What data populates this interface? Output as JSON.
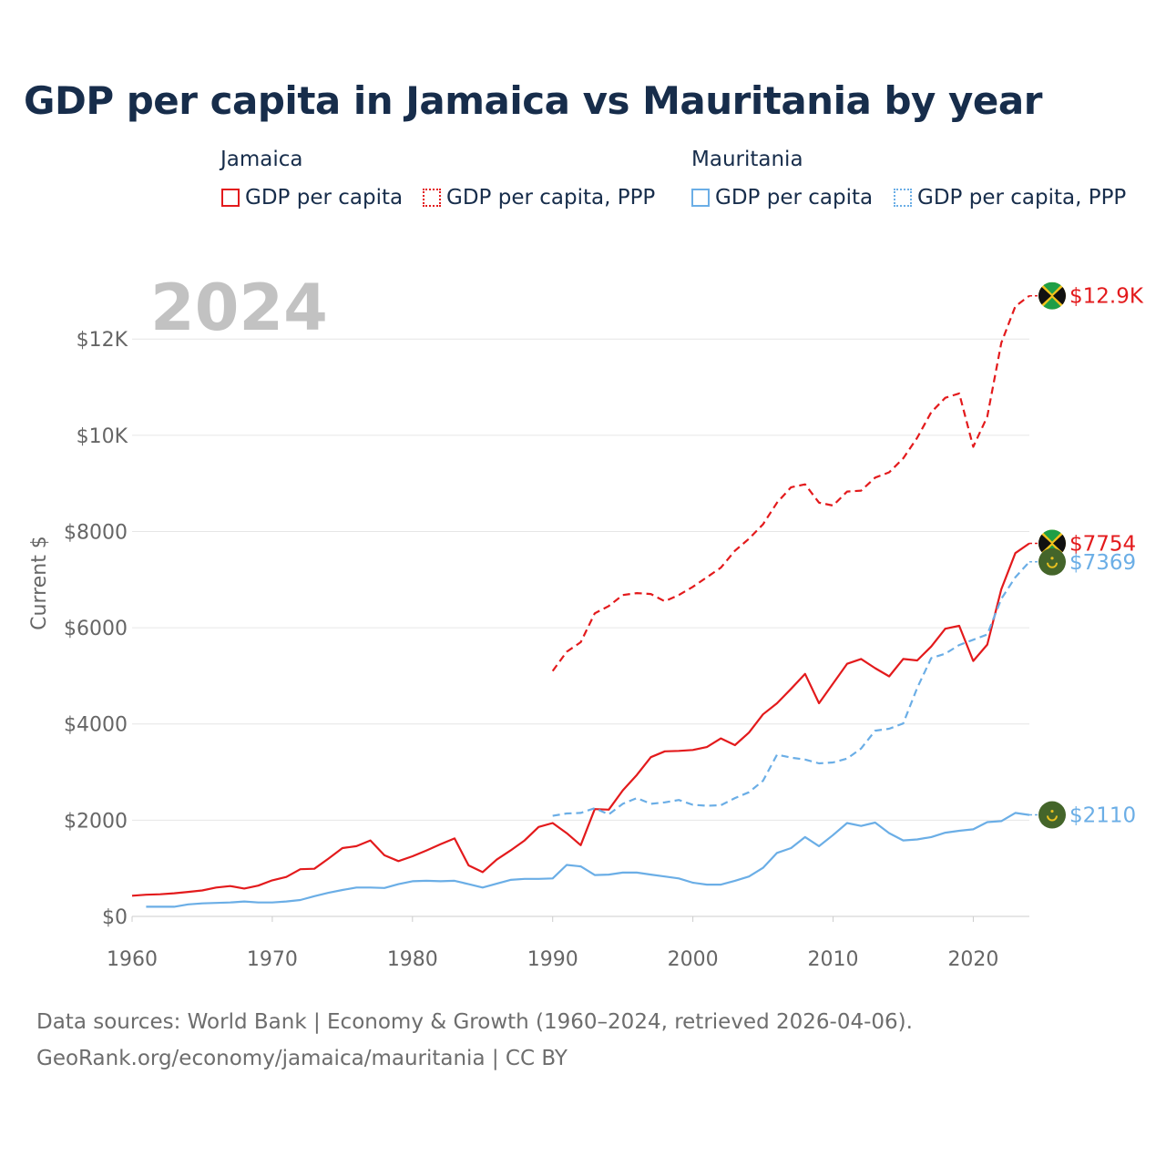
{
  "chart_data": {
    "type": "line",
    "title": "GDP per capita in Jamaica vs Mauritania by year",
    "year_label": "2024",
    "ylabel": "Current $",
    "xlabel": "",
    "xlim": [
      1960,
      2024
    ],
    "ylim": [
      0,
      13500
    ],
    "x_ticks": [
      1960,
      1970,
      1980,
      1990,
      2000,
      2010,
      2020
    ],
    "y_ticks": [
      0,
      2000,
      4000,
      6000,
      8000,
      10000,
      12000
    ],
    "y_tick_labels": [
      "$0",
      "$2000",
      "$4000",
      "$6000",
      "$8000",
      "$10K",
      "$12K"
    ],
    "grid": true,
    "legend": {
      "groups": [
        {
          "country": "Jamaica",
          "entries": [
            "GDP per capita",
            "GDP per capita, PPP"
          ]
        },
        {
          "country": "Mauritania",
          "entries": [
            "GDP per capita",
            "GDP per capita, PPP"
          ]
        }
      ]
    },
    "series": [
      {
        "name": "Jamaica GDP per capita",
        "country": "Jamaica",
        "metric": "GDP per capita",
        "color": "#e31a1c",
        "style": "solid",
        "end_label": "$7754",
        "x": [
          1960,
          1961,
          1962,
          1963,
          1964,
          1965,
          1966,
          1967,
          1968,
          1969,
          1970,
          1971,
          1972,
          1973,
          1974,
          1975,
          1976,
          1977,
          1978,
          1979,
          1980,
          1981,
          1982,
          1983,
          1984,
          1985,
          1986,
          1987,
          1988,
          1989,
          1990,
          1991,
          1992,
          1993,
          1994,
          1995,
          1996,
          1997,
          1998,
          1999,
          2000,
          2001,
          2002,
          2003,
          2004,
          2005,
          2006,
          2007,
          2008,
          2009,
          2010,
          2011,
          2012,
          2013,
          2014,
          2015,
          2016,
          2017,
          2018,
          2019,
          2020,
          2021,
          2022,
          2023,
          2024
        ],
        "values": [
          430,
          450,
          460,
          480,
          510,
          540,
          600,
          630,
          580,
          640,
          750,
          820,
          980,
          990,
          1200,
          1420,
          1460,
          1580,
          1270,
          1150,
          1250,
          1370,
          1500,
          1620,
          1060,
          920,
          1180,
          1370,
          1580,
          1860,
          1940,
          1730,
          1480,
          2230,
          2220,
          2620,
          2940,
          3310,
          3430,
          3440,
          3460,
          3520,
          3700,
          3560,
          3820,
          4200,
          4430,
          4730,
          5040,
          4430,
          4840,
          5250,
          5350,
          5160,
          4990,
          5350,
          5320,
          5610,
          5980,
          6040,
          5310,
          5650,
          6800,
          7550,
          7754
        ]
      },
      {
        "name": "Jamaica GDP per capita, PPP",
        "country": "Jamaica",
        "metric": "GDP per capita, PPP",
        "color": "#e31a1c",
        "style": "dashed",
        "end_label": "$12.9K",
        "x": [
          1990,
          1991,
          1992,
          1993,
          1994,
          1995,
          1996,
          1997,
          1998,
          1999,
          2000,
          2001,
          2002,
          2003,
          2004,
          2005,
          2006,
          2007,
          2008,
          2009,
          2010,
          2011,
          2012,
          2013,
          2014,
          2015,
          2016,
          2017,
          2018,
          2019,
          2020,
          2021,
          2022,
          2023,
          2024
        ],
        "values": [
          5100,
          5500,
          5700,
          6300,
          6450,
          6680,
          6720,
          6700,
          6550,
          6680,
          6850,
          7050,
          7250,
          7600,
          7850,
          8150,
          8600,
          8920,
          8980,
          8600,
          8540,
          8830,
          8850,
          9120,
          9230,
          9520,
          9950,
          10480,
          10780,
          10870,
          9760,
          10390,
          11920,
          12680,
          12900
        ]
      },
      {
        "name": "Mauritania GDP per capita",
        "country": "Mauritania",
        "metric": "GDP per capita",
        "color": "#6baee6",
        "style": "solid",
        "end_label": "$2110",
        "x": [
          1961,
          1962,
          1963,
          1964,
          1965,
          1966,
          1967,
          1968,
          1969,
          1970,
          1971,
          1972,
          1973,
          1974,
          1975,
          1976,
          1977,
          1978,
          1979,
          1980,
          1981,
          1982,
          1983,
          1984,
          1985,
          1986,
          1987,
          1988,
          1989,
          1990,
          1991,
          1992,
          1993,
          1994,
          1995,
          1996,
          1997,
          1998,
          1999,
          2000,
          2001,
          2002,
          2003,
          2004,
          2005,
          2006,
          2007,
          2008,
          2009,
          2010,
          2011,
          2012,
          2013,
          2014,
          2015,
          2016,
          2017,
          2018,
          2019,
          2020,
          2021,
          2022,
          2023,
          2024
        ],
        "values": [
          200,
          200,
          200,
          250,
          270,
          280,
          290,
          310,
          290,
          290,
          310,
          340,
          420,
          490,
          550,
          600,
          600,
          590,
          670,
          730,
          740,
          730,
          740,
          670,
          600,
          680,
          760,
          780,
          780,
          790,
          1070,
          1040,
          860,
          870,
          910,
          910,
          870,
          830,
          790,
          700,
          660,
          660,
          740,
          830,
          1010,
          1320,
          1420,
          1650,
          1460,
          1690,
          1940,
          1880,
          1950,
          1730,
          1580,
          1600,
          1650,
          1740,
          1780,
          1810,
          1960,
          1980,
          2150,
          2110
        ]
      },
      {
        "name": "Mauritania GDP per capita, PPP",
        "country": "Mauritania",
        "metric": "GDP per capita, PPP",
        "color": "#6baee6",
        "style": "dashed",
        "end_label": "$7369",
        "x": [
          1990,
          1991,
          1992,
          1993,
          1994,
          1995,
          1996,
          1997,
          1998,
          1999,
          2000,
          2001,
          2002,
          2003,
          2004,
          2005,
          2006,
          2007,
          2008,
          2009,
          2010,
          2011,
          2012,
          2013,
          2014,
          2015,
          2016,
          2017,
          2018,
          2019,
          2020,
          2021,
          2022,
          2023,
          2024
        ],
        "values": [
          2090,
          2140,
          2150,
          2250,
          2120,
          2340,
          2460,
          2340,
          2370,
          2420,
          2320,
          2300,
          2310,
          2460,
          2580,
          2820,
          3360,
          3300,
          3260,
          3180,
          3200,
          3280,
          3490,
          3860,
          3900,
          4010,
          4750,
          5370,
          5460,
          5640,
          5750,
          5860,
          6600,
          7050,
          7369
        ]
      }
    ]
  },
  "legend_ui": {
    "jamaica_title": "Jamaica",
    "mauritania_title": "Mauritania",
    "jam_gdp": "GDP per capita",
    "jam_ppp": "GDP per capita, PPP",
    "mau_gdp": "GDP per capita",
    "mau_ppp": "GDP per capita, PPP"
  },
  "footer": {
    "line1": "Data sources: World Bank | Economy & Growth (1960–2024, retrieved 2026-04-06).",
    "line2": "GeoRank.org/economy/jamaica/mauritania | CC BY"
  },
  "colors": {
    "title": "#172d4b",
    "jamaica": "#e31a1c",
    "mauritania": "#6baee6",
    "axis_text": "#666666",
    "grid": "#e6e6e6",
    "year_watermark": "#c2c2c2"
  }
}
